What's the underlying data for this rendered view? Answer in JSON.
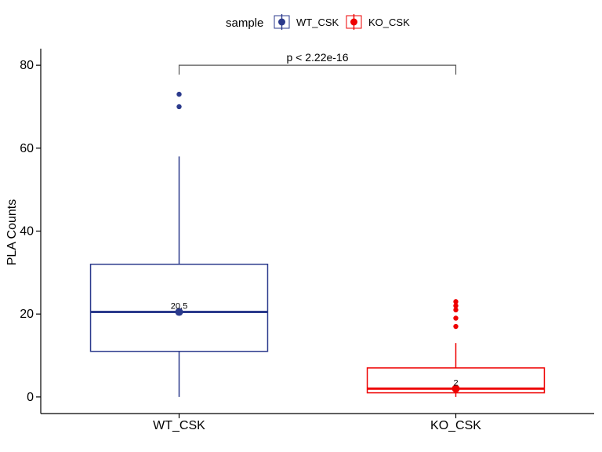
{
  "chart_data": {
    "type": "boxplot",
    "ylabel": "PLA Counts",
    "xlabel": "",
    "ylim": [
      -4,
      84
    ],
    "yticks": [
      0,
      20,
      40,
      60,
      80
    ],
    "categories": [
      "WT_CSK",
      "KO_CSK"
    ],
    "legend": {
      "title": "sample",
      "position": "top",
      "entries": [
        "WT_CSK",
        "KO_CSK"
      ]
    },
    "series": [
      {
        "name": "WT_CSK",
        "color": "#2b3a8c",
        "min": 0,
        "q1": 11,
        "median": 20.5,
        "q3": 32,
        "max": 58,
        "outliers": [
          70,
          73
        ],
        "median_label": "20.5"
      },
      {
        "name": "KO_CSK",
        "color": "#ee0000",
        "min": 0,
        "q1": 1,
        "median": 2,
        "q3": 7,
        "max": 13,
        "outliers": [
          17,
          19,
          21,
          22,
          23
        ],
        "median_label": "2"
      }
    ],
    "annotations": [
      {
        "text": "p < 2.22e-16",
        "from": "WT_CSK",
        "to": "KO_CSK",
        "y": 80
      }
    ],
    "grid": false
  }
}
